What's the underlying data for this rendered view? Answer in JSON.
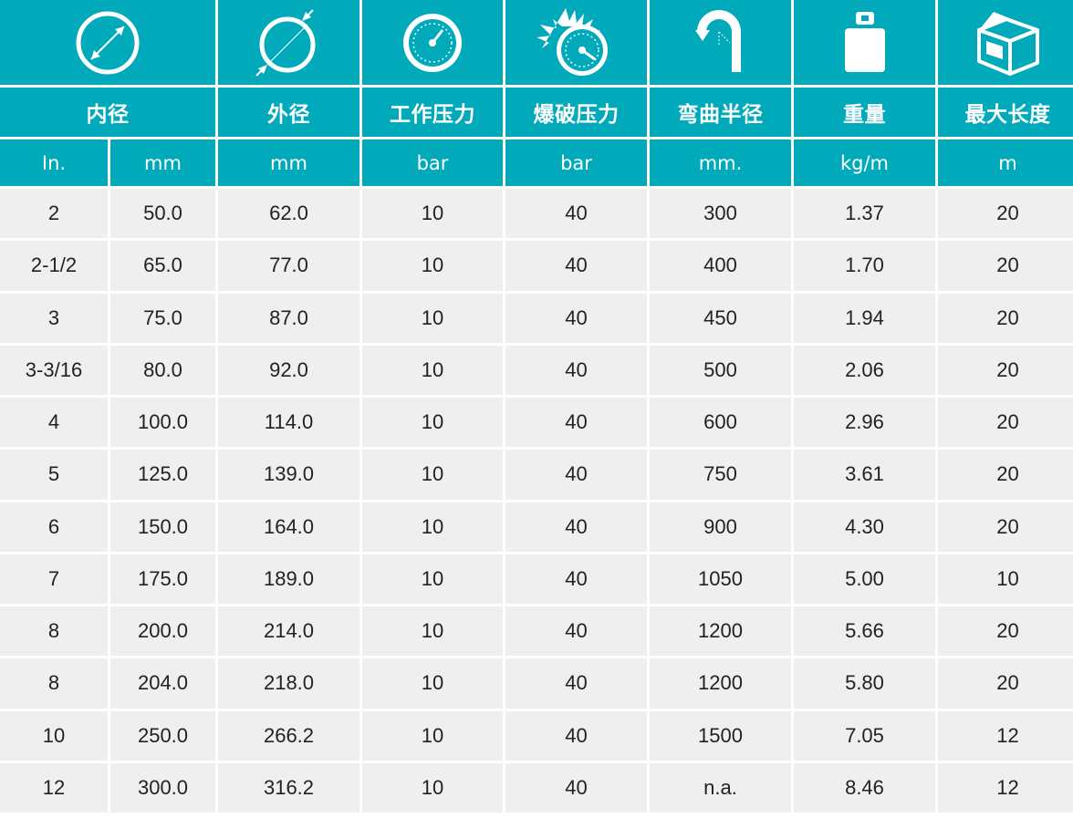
{
  "colors": {
    "header_bg": "#00aabb",
    "header_text": "#ffffff",
    "row_bg": "#efefef",
    "text": "#222222"
  },
  "icons": [
    "inner-diameter-icon",
    "outer-diameter-icon",
    "pressure-gauge-icon",
    "burst-gauge-icon",
    "bend-radius-icon",
    "weight-icon",
    "box-icon"
  ],
  "headers": [
    "内径",
    "外径",
    "工作压力",
    "爆破压力",
    "弯曲半径",
    "重量",
    "最大长度"
  ],
  "units": [
    "In.",
    "mm",
    "mm",
    "bar",
    "bar",
    "mm.",
    "kg/m",
    "m"
  ],
  "rows": [
    [
      "2",
      "50.0",
      "62.0",
      "10",
      "40",
      "300",
      "1.37",
      "20"
    ],
    [
      "2-1/2",
      "65.0",
      "77.0",
      "10",
      "40",
      "400",
      "1.70",
      "20"
    ],
    [
      "3",
      "75.0",
      "87.0",
      "10",
      "40",
      "450",
      "1.94",
      "20"
    ],
    [
      "3-3/16",
      "80.0",
      "92.0",
      "10",
      "40",
      "500",
      "2.06",
      "20"
    ],
    [
      "4",
      "100.0",
      "114.0",
      "10",
      "40",
      "600",
      "2.96",
      "20"
    ],
    [
      "5",
      "125.0",
      "139.0",
      "10",
      "40",
      "750",
      "3.61",
      "20"
    ],
    [
      "6",
      "150.0",
      "164.0",
      "10",
      "40",
      "900",
      "4.30",
      "20"
    ],
    [
      "7",
      "175.0",
      "189.0",
      "10",
      "40",
      "1050",
      "5.00",
      "10"
    ],
    [
      "8",
      "200.0",
      "214.0",
      "10",
      "40",
      "1200",
      "5.66",
      "20"
    ],
    [
      "8",
      "204.0",
      "218.0",
      "10",
      "40",
      "1200",
      "5.80",
      "20"
    ],
    [
      "10",
      "250.0",
      "266.2",
      "10",
      "40",
      "1500",
      "7.05",
      "12"
    ],
    [
      "12",
      "300.0",
      "316.2",
      "10",
      "40",
      "n.a.",
      "8.46",
      "12"
    ]
  ]
}
